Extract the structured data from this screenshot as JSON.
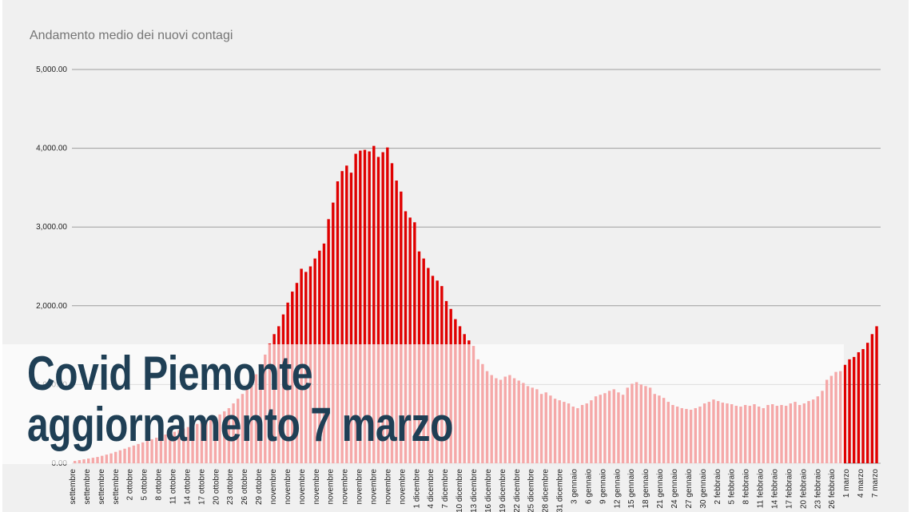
{
  "headline": {
    "line1": "Covid Piemonte",
    "line2": "aggiornamento 7 marzo"
  },
  "colors": {
    "bar": "#e00000",
    "bar_faded": "#f4b4b4",
    "title": "#757575",
    "headline": "#1f3f55",
    "grid": "#9e9e9e"
  },
  "chart_data": {
    "type": "bar",
    "title": "Andamento medio dei nuovi contagi",
    "xlabel": "",
    "ylabel": "",
    "ylim": [
      0,
      5000
    ],
    "yticks": [
      "0.00",
      "1,000.00",
      "2,000.00",
      "3,000.00",
      "4,000.00",
      "5,000.00"
    ],
    "ytick_values": [
      0,
      1000,
      2000,
      3000,
      4000,
      5000
    ],
    "grid": true,
    "x_tick_labels": [
      "settembre",
      "settembre",
      "settembre",
      "settembre",
      "2 ottobre",
      "5 ottobre",
      "8 ottobre",
      "11 ottobre",
      "14 ottobre",
      "17 ottobre",
      "20 ottobre",
      "23 ottobre",
      "26 ottobre",
      "29 ottobre",
      "novembre",
      "novembre",
      "novembre",
      "novembre",
      "novembre",
      "novembre",
      "novembre",
      "novembre",
      "novembre",
      "novembre",
      "1 dicembre",
      "4 dicembre",
      "7 dicembre",
      "10 dicembre",
      "13 dicembre",
      "16 dicembre",
      "19 dicembre",
      "22 dicembre",
      "25 dicembre",
      "28 dicembre",
      "31 dicembre",
      "3 gennaio",
      "6 gennaio",
      "9 gennaio",
      "12 gennaio",
      "15 gennaio",
      "18 gennaio",
      "21 gennaio",
      "24 gennaio",
      "27 gennaio",
      "30 gennaio",
      "2 febbraio",
      "5 febbraio",
      "8 febbraio",
      "11 febbraio",
      "14 febbraio",
      "17 febbraio",
      "20 febbraio",
      "23 febbraio",
      "26 febbraio",
      "1 marzo",
      "4 marzo",
      "7 marzo"
    ],
    "values": [
      30,
      40,
      50,
      60,
      70,
      80,
      95,
      110,
      125,
      145,
      165,
      185,
      205,
      225,
      245,
      265,
      285,
      305,
      325,
      345,
      365,
      380,
      400,
      420,
      440,
      460,
      480,
      500,
      520,
      540,
      560,
      590,
      620,
      660,
      700,
      760,
      820,
      880,
      940,
      1000,
      1130,
      1260,
      1380,
      1520,
      1640,
      1740,
      1890,
      2040,
      2180,
      2290,
      2470,
      2430,
      2500,
      2600,
      2700,
      2790,
      3100,
      3310,
      3580,
      3710,
      3780,
      3690,
      3930,
      3970,
      3980,
      3960,
      4030,
      3890,
      3950,
      4010,
      3810,
      3590,
      3450,
      3200,
      3120,
      3060,
      2690,
      2600,
      2480,
      2380,
      2320,
      2250,
      2060,
      1960,
      1830,
      1740,
      1640,
      1560,
      1490,
      1320,
      1260,
      1170,
      1120,
      1080,
      1060,
      1100,
      1120,
      1080,
      1050,
      1020,
      980,
      960,
      940,
      880,
      900,
      860,
      820,
      800,
      780,
      760,
      720,
      700,
      740,
      760,
      800,
      850,
      870,
      890,
      920,
      940,
      900,
      870,
      960,
      1010,
      1030,
      1000,
      980,
      960,
      880,
      860,
      830,
      780,
      740,
      720,
      700,
      690,
      680,
      700,
      720,
      760,
      780,
      810,
      790,
      770,
      760,
      750,
      730,
      720,
      740,
      730,
      750,
      720,
      700,
      740,
      750,
      730,
      740,
      730,
      760,
      780,
      740,
      760,
      790,
      810,
      850,
      920,
      1060,
      1110,
      1160,
      1170,
      1250,
      1320,
      1350,
      1410,
      1450,
      1530,
      1640,
      1740
    ],
    "series_note_colors": [
      "#e00000"
    ]
  }
}
